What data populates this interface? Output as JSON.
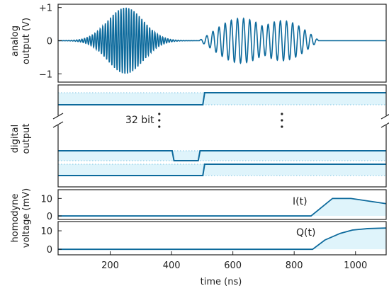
{
  "colors": {
    "line": "#0d6a9c",
    "fill": "#dff4fb",
    "dotted": "#7cc3e2",
    "frame": "#222222"
  },
  "chart_data": [
    {
      "panel": "analog",
      "type": "line",
      "ylabel_lines": [
        "analog",
        "output (V)"
      ],
      "xlim": [
        30,
        1100
      ],
      "ylim": [
        -1.25,
        1.1
      ],
      "yticks": [
        {
          "value": 1,
          "label": "+1"
        },
        {
          "value": 0,
          "label": "0"
        },
        {
          "value": -1,
          "label": "−1"
        }
      ],
      "pulses": [
        {
          "shape": "gaussian",
          "center_ns": 250,
          "sigma_ns": 58,
          "amplitude_v": 1.0,
          "period_ns": 8.5
        },
        {
          "shape": "beating",
          "start_ns": 490,
          "end_ns": 880,
          "amplitude_v": 0.78,
          "carrier_period_ns": 20,
          "envelope_period_ns": 210
        }
      ]
    },
    {
      "panel": "digital",
      "type": "line",
      "ylabel_lines": [
        "digital",
        "output"
      ],
      "xlim": [
        30,
        1100
      ],
      "annotation": "32 bit",
      "channels": [
        {
          "low": 0,
          "high": 1,
          "steps": [
            [
              30,
              0
            ],
            [
              505,
              1
            ]
          ]
        },
        {
          "low": 0,
          "high": 1,
          "steps": [
            [
              30,
              1
            ],
            [
              1100,
              1
            ]
          ]
        },
        {
          "low": 0,
          "high": 1,
          "steps": [
            [
              30,
              1
            ],
            [
              405,
              0
            ],
            [
              490,
              1
            ]
          ]
        },
        {
          "low": 0,
          "high": 1,
          "steps": [
            [
              30,
              0
            ],
            [
              505,
              1
            ]
          ]
        }
      ]
    },
    {
      "panel": "homodyne_I",
      "type": "line",
      "ylabel_lines": [
        "homodyne",
        "voltage (mV)"
      ],
      "series_label": "I(t)",
      "xlim": [
        30,
        1100
      ],
      "ylim": [
        -2,
        15
      ],
      "yticks": [
        {
          "value": 10,
          "label": "10"
        },
        {
          "value": 0,
          "label": "0"
        }
      ],
      "x": [
        30,
        855,
        925,
        985,
        1100
      ],
      "y": [
        0,
        0,
        10,
        10,
        7
      ]
    },
    {
      "panel": "homodyne_Q",
      "type": "line",
      "series_label": "Q(t)",
      "xlim": [
        30,
        1100
      ],
      "ylim": [
        -3,
        15
      ],
      "yticks": [
        {
          "value": 10,
          "label": "10"
        },
        {
          "value": 0,
          "label": "0"
        }
      ],
      "xticks": [
        200,
        400,
        600,
        800,
        1000
      ],
      "xlabel": "time (ns)",
      "x": [
        30,
        860,
        900,
        950,
        990,
        1040,
        1100
      ],
      "y": [
        0,
        0,
        5,
        8.6,
        10.4,
        11.2,
        11.5
      ]
    }
  ]
}
